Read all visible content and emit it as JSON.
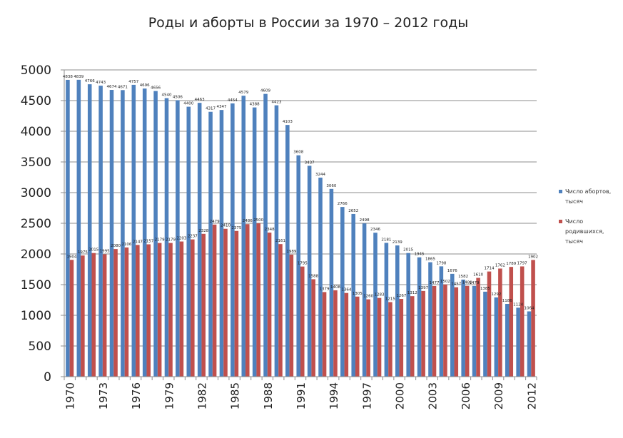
{
  "chart_data": {
    "type": "bar",
    "title": "Роды и аборты в России за 1970 – 2012 годы",
    "xlabel": "",
    "ylabel": "",
    "ylim": [
      0,
      5000
    ],
    "yticks": [
      0,
      500,
      1000,
      1500,
      2000,
      2500,
      3000,
      3500,
      4000,
      4500,
      5000
    ],
    "x": [
      1970,
      1971,
      1972,
      1973,
      1974,
      1975,
      1976,
      1977,
      1978,
      1979,
      1980,
      1981,
      1982,
      1983,
      1984,
      1985,
      1986,
      1987,
      1988,
      1989,
      1990,
      1991,
      1992,
      1993,
      1994,
      1995,
      1996,
      1997,
      1998,
      1999,
      2000,
      2001,
      2002,
      2003,
      2004,
      2005,
      2006,
      2007,
      2008,
      2009,
      2010,
      2011,
      2012
    ],
    "xtick_labels": [
      "1970",
      "1973",
      "1976",
      "1979",
      "1982",
      "1985",
      "1988",
      "1991",
      "1994",
      "1997",
      "2000",
      "2003",
      "2006",
      "2009",
      "2012"
    ],
    "grid": true,
    "legend_position": "right",
    "series": [
      {
        "name": "Число абортов, тысяч",
        "legend_lines": [
          "Число абортов,",
          "тысяч"
        ],
        "color": "#4f81bd",
        "values": [
          4838,
          4839,
          4766,
          4743,
          4674,
          4671,
          4757,
          4696,
          4656,
          4540,
          4506,
          4400,
          4463,
          4317,
          4347,
          4454,
          4579,
          4388,
          4609,
          4423,
          4103,
          3608,
          3437,
          3244,
          3060,
          2766,
          2652,
          2498,
          2346,
          2181,
          2139,
          2015,
          1945,
          1865,
          1798,
          1676,
          1582,
          1479,
          1385,
          1292,
          1186,
          1124,
          1064
        ]
      },
      {
        "name": "Число родившихся, тысяч",
        "legend_lines": [
          "Число",
          "родившихся,",
          "тысяч"
        ],
        "color": "#c0504d",
        "values": [
          1904,
          1975,
          2015,
          1995,
          2080,
          2106,
          2147,
          2157,
          2179,
          2179,
          2203,
          2237,
          2328,
          2479,
          2410,
          2375,
          2486,
          2500,
          2348,
          2161,
          1989,
          1795,
          1588,
          1379,
          1408,
          1364,
          1305,
          1260,
          1283,
          1215,
          1267,
          1312,
          1397,
          1477,
          1502,
          1457,
          1480,
          1610,
          1714,
          1762,
          1789,
          1797,
          1902
        ]
      }
    ]
  }
}
